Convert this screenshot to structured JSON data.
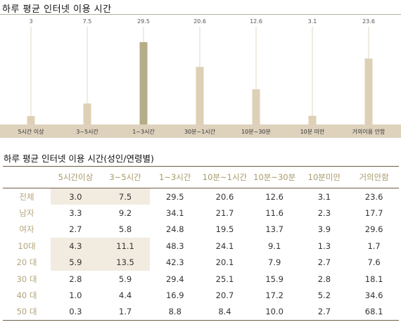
{
  "chart_data": {
    "type": "bar",
    "title": "하루 평균 인터넷 이용 시간",
    "categories": [
      "5시간 이상",
      "3~5시간",
      "1~3시간",
      "30분~1시간",
      "10분~30분",
      "10분 미만",
      "거의이용 안함"
    ],
    "values": [
      3,
      7.5,
      29.5,
      20.6,
      12.6,
      3.1,
      23.6
    ],
    "value_labels": [
      "3",
      "7.5",
      "29.5",
      "20.6",
      "12.6",
      "3.1",
      "23.6"
    ],
    "ylim": [
      0,
      35
    ],
    "highlight_index": 2,
    "colors": {
      "bar": "#ddd0b6",
      "highlight": "#b5ac88",
      "band": "#ded2bd",
      "border": "#6b5f45"
    }
  },
  "table": {
    "title": "하루 평균 인터넷 이용 시간(성인/연령별)",
    "headers": [
      "",
      "5시간이상",
      "3~5시간",
      "1~3시간",
      "10분~1시간",
      "10분~30분",
      "10분미만",
      "거의안함"
    ],
    "rows": [
      {
        "label": "전체",
        "values": [
          "3.0",
          "7.5",
          "29.5",
          "20.6",
          "12.6",
          "3.1",
          "23.6"
        ]
      },
      {
        "label": "남자",
        "values": [
          "3.3",
          "9.2",
          "34.1",
          "21.7",
          "11.6",
          "2.3",
          "17.7"
        ]
      },
      {
        "label": "여자",
        "values": [
          "2.7",
          "5.8",
          "24.8",
          "19.5",
          "13.7",
          "3.9",
          "29.6"
        ]
      },
      {
        "label": "10대",
        "values": [
          "4.3",
          "11.1",
          "48.3",
          "24.1",
          "9.1",
          "1.3",
          "1.7"
        ]
      },
      {
        "label": "20 대",
        "values": [
          "5.9",
          "13.5",
          "42.3",
          "20.1",
          "7.9",
          "2.7",
          "7.6"
        ]
      },
      {
        "label": "30 대",
        "values": [
          "2.8",
          "5.9",
          "29.4",
          "25.1",
          "15.9",
          "2.8",
          "18.1"
        ]
      },
      {
        "label": "40 대",
        "values": [
          "1.0",
          "4.4",
          "16.9",
          "20.7",
          "17.2",
          "5.2",
          "34.6"
        ]
      },
      {
        "label": "50 대",
        "values": [
          "0.3",
          "1.7",
          "8.8",
          "8.4",
          "10.0",
          "2.7",
          "68.1"
        ]
      }
    ]
  }
}
